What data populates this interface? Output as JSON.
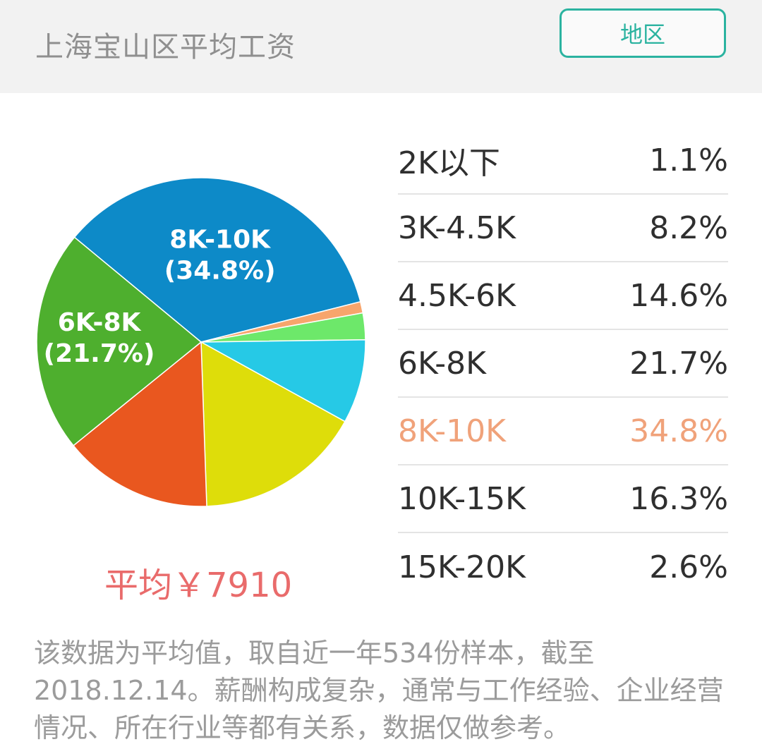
{
  "header": {
    "title": "上海宝山区平均工资",
    "region_button": "地区"
  },
  "average_text": "平均￥7910",
  "legend": [
    {
      "range": "2K以下",
      "percent": "1.1%",
      "highlight": false
    },
    {
      "range": "3K-4.5K",
      "percent": "8.2%",
      "highlight": false
    },
    {
      "range": "4.5K-6K",
      "percent": "14.6%",
      "highlight": false
    },
    {
      "range": "6K-8K",
      "percent": "21.7%",
      "highlight": false
    },
    {
      "range": "8K-10K",
      "percent": "34.8%",
      "highlight": true
    },
    {
      "range": "10K-15K",
      "percent": "16.3%",
      "highlight": false
    },
    {
      "range": "15K-20K",
      "percent": "2.6%",
      "highlight": false
    }
  ],
  "footnote": "该数据为平均值，取自近一年534份样本，截至2018.12.14。薪酬构成复杂，通常与工作经验、企业经营情况、所在行业等都有关系，数据仅做参考。",
  "chart_data": {
    "type": "pie",
    "slices": [
      {
        "label": "8K-10K",
        "value": 34.8,
        "color": "#0d8ac8",
        "on_chart_label": [
          "8K-10K",
          "(34.8%)"
        ]
      },
      {
        "label": "2K以下",
        "value": 1.1,
        "color": "#f7a56c"
      },
      {
        "label": "15K-20K",
        "value": 2.6,
        "color": "#6de86a"
      },
      {
        "label": "3K-4.5K",
        "value": 8.2,
        "color": "#26c9e6"
      },
      {
        "label": "10K-15K",
        "value": 16.3,
        "color": "#dedd0a"
      },
      {
        "label": "4.5K-6K",
        "value": 14.6,
        "color": "#e9571f"
      },
      {
        "label": "6K-8K",
        "value": 21.7,
        "color": "#4eaf2e",
        "on_chart_label": [
          "6K-8K",
          "(21.7%)"
        ]
      }
    ]
  }
}
